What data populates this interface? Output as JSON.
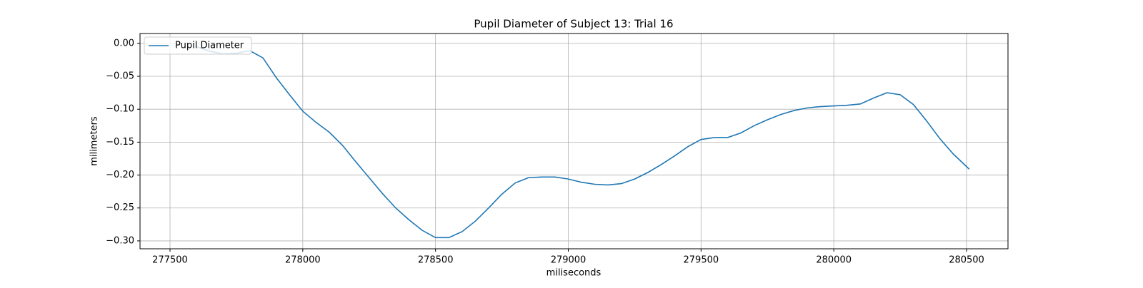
{
  "chart_data": {
    "type": "line",
    "title": "Pupil Diameter of Subject 13: Trial 16",
    "x_label": "miliseconds",
    "y_label": "milimeters",
    "x": [
      277600,
      277650,
      277700,
      277750,
      277800,
      277850,
      277900,
      277950,
      278000,
      278050,
      278100,
      278150,
      278200,
      278250,
      278300,
      278350,
      278400,
      278450,
      278500,
      278550,
      278600,
      278650,
      278700,
      278750,
      278800,
      278850,
      278900,
      278950,
      279000,
      279050,
      279100,
      279150,
      279200,
      279250,
      279300,
      279350,
      279400,
      279450,
      279500,
      279550,
      279600,
      279650,
      279700,
      279750,
      279800,
      279850,
      279900,
      279950,
      280000,
      280050,
      280100,
      280150,
      280200,
      280250,
      280300,
      280350,
      280400,
      280450,
      280510
    ],
    "series": [
      {
        "name": "Pupil Diameter",
        "color": "#1f77b4",
        "values": [
          -0.005,
          -0.012,
          -0.016,
          -0.015,
          -0.011,
          -0.022,
          -0.052,
          -0.078,
          -0.103,
          -0.12,
          -0.135,
          -0.155,
          -0.18,
          -0.204,
          -0.228,
          -0.25,
          -0.268,
          -0.284,
          -0.295,
          -0.295,
          -0.286,
          -0.27,
          -0.25,
          -0.229,
          -0.212,
          -0.204,
          -0.203,
          -0.203,
          -0.206,
          -0.211,
          -0.214,
          -0.215,
          -0.213,
          -0.206,
          -0.196,
          -0.184,
          -0.171,
          -0.157,
          -0.146,
          -0.143,
          -0.143,
          -0.136,
          -0.125,
          -0.116,
          -0.108,
          -0.102,
          -0.098,
          -0.096,
          -0.095,
          -0.094,
          -0.092,
          -0.083,
          -0.075,
          -0.078,
          -0.093,
          -0.118,
          -0.145,
          -0.168,
          -0.191
        ]
      }
    ],
    "xlim": [
      277387,
      280656
    ],
    "ylim": [
      -0.312,
      0.015
    ],
    "xticks": [
      277500,
      278000,
      278500,
      279000,
      279500,
      280000,
      280500
    ],
    "yticks": [
      {
        "value": 0,
        "label": "0.00"
      },
      {
        "value": -0.05,
        "label": "−0.05"
      },
      {
        "value": -0.1,
        "label": "−0.10"
      },
      {
        "value": -0.15,
        "label": "−0.15"
      },
      {
        "value": -0.2,
        "label": "−0.20"
      },
      {
        "value": -0.25,
        "label": "−0.25"
      },
      {
        "value": -0.3,
        "label": "−0.30"
      }
    ],
    "grid": true,
    "legend": "upper-left"
  }
}
